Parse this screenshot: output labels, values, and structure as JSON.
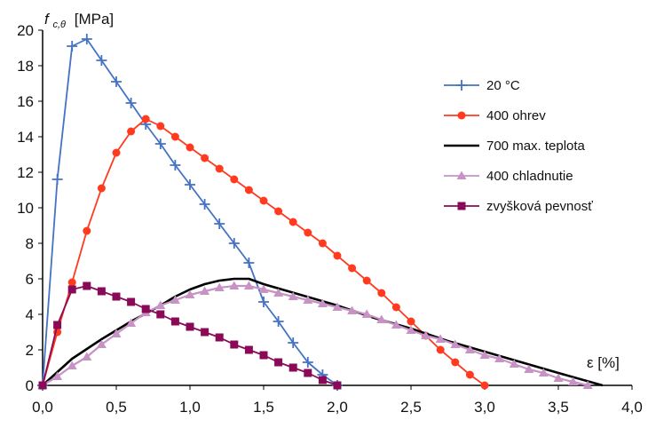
{
  "chart_data": {
    "type": "line",
    "ylabel": "f c,θ [MPa]",
    "ylabel_main": "f",
    "ylabel_sub": "c,θ",
    "ylabel_unit": "[MPa]",
    "xlabel": "ε [%]",
    "xlim": [
      0,
      4
    ],
    "ylim": [
      0,
      20
    ],
    "x_ticks": [
      "0,0",
      "0,5",
      "1,0",
      "1,5",
      "2,0",
      "2,5",
      "3,0",
      "3,5",
      "4,0"
    ],
    "y_ticks": [
      "0",
      "2",
      "4",
      "6",
      "8",
      "10",
      "12",
      "14",
      "16",
      "18",
      "20"
    ],
    "grid": false,
    "legend_position": "right",
    "series": [
      {
        "name": "20 °C",
        "color": "#4472c4",
        "marker": "plus",
        "x": [
          0,
          0.1,
          0.2,
          0.3,
          0.4,
          0.5,
          0.6,
          0.7,
          0.8,
          0.9,
          1.0,
          1.1,
          1.2,
          1.3,
          1.4,
          1.5,
          1.6,
          1.7,
          1.8,
          1.9,
          2.0
        ],
        "y": [
          0,
          11.6,
          19.1,
          19.5,
          18.3,
          17.1,
          15.9,
          14.7,
          13.6,
          12.4,
          11.3,
          10.2,
          9.1,
          8.0,
          6.9,
          4.7,
          3.6,
          2.4,
          1.3,
          0.6,
          0
        ]
      },
      {
        "name": "400 ohrev",
        "color": "#ff3b1f",
        "marker": "circle",
        "x": [
          0,
          0.1,
          0.2,
          0.3,
          0.4,
          0.5,
          0.6,
          0.7,
          0.8,
          0.9,
          1.0,
          1.1,
          1.2,
          1.3,
          1.4,
          1.5,
          1.6,
          1.7,
          1.8,
          1.9,
          2.0,
          2.1,
          2.2,
          2.3,
          2.4,
          2.5,
          2.6,
          2.7,
          2.8,
          2.9,
          3.0
        ],
        "y": [
          0,
          3.0,
          5.8,
          8.7,
          11.1,
          13.1,
          14.3,
          15.0,
          14.6,
          14.0,
          13.4,
          12.8,
          12.2,
          11.6,
          11.0,
          10.4,
          9.8,
          9.2,
          8.6,
          8.0,
          7.3,
          6.6,
          5.9,
          5.2,
          4.4,
          3.6,
          2.8,
          2.0,
          1.3,
          0.6,
          0
        ]
      },
      {
        "name": "700 max. teplota",
        "color": "#000000",
        "marker": "none",
        "x": [
          0,
          0.2,
          0.4,
          0.6,
          0.8,
          0.9,
          1.0,
          1.1,
          1.2,
          1.3,
          1.4,
          1.5,
          1.75,
          2.0,
          2.25,
          2.5,
          2.75,
          3.0,
          3.25,
          3.5,
          3.8
        ],
        "y": [
          0,
          1.5,
          2.6,
          3.6,
          4.5,
          5.0,
          5.4,
          5.7,
          5.9,
          6.0,
          6.0,
          5.7,
          5.1,
          4.5,
          3.8,
          3.2,
          2.5,
          1.9,
          1.3,
          0.7,
          0
        ]
      },
      {
        "name": "400 chladnutie",
        "color": "#c792c4",
        "marker": "triangle",
        "x": [
          0,
          0.1,
          0.2,
          0.3,
          0.4,
          0.5,
          0.6,
          0.7,
          0.8,
          0.9,
          1.0,
          1.1,
          1.2,
          1.3,
          1.4,
          1.5,
          1.6,
          1.7,
          1.8,
          1.9,
          2.0,
          2.1,
          2.2,
          2.3,
          2.4,
          2.5,
          2.6,
          2.7,
          2.8,
          2.9,
          3.0,
          3.1,
          3.2,
          3.3,
          3.4,
          3.5,
          3.6,
          3.7
        ],
        "y": [
          0,
          0.5,
          1.1,
          1.6,
          2.3,
          2.9,
          3.5,
          4.1,
          4.5,
          4.8,
          5.1,
          5.3,
          5.5,
          5.6,
          5.6,
          5.4,
          5.2,
          5.0,
          4.8,
          4.6,
          4.4,
          4.2,
          4.0,
          3.7,
          3.4,
          3.1,
          2.8,
          2.6,
          2.3,
          2.0,
          1.7,
          1.5,
          1.2,
          0.9,
          0.7,
          0.4,
          0.2,
          0
        ]
      },
      {
        "name": "zvyšková pevnosť",
        "color": "#8b0a57",
        "marker": "square",
        "x": [
          0,
          0.1,
          0.2,
          0.3,
          0.4,
          0.5,
          0.6,
          0.7,
          0.8,
          0.9,
          1.0,
          1.1,
          1.2,
          1.3,
          1.4,
          1.5,
          1.6,
          1.7,
          1.8,
          1.9,
          2.0
        ],
        "y": [
          0,
          3.4,
          5.4,
          5.6,
          5.3,
          5.0,
          4.7,
          4.3,
          4.0,
          3.6,
          3.3,
          3.0,
          2.7,
          2.3,
          2.0,
          1.7,
          1.3,
          1.0,
          0.7,
          0.3,
          0
        ]
      }
    ]
  }
}
